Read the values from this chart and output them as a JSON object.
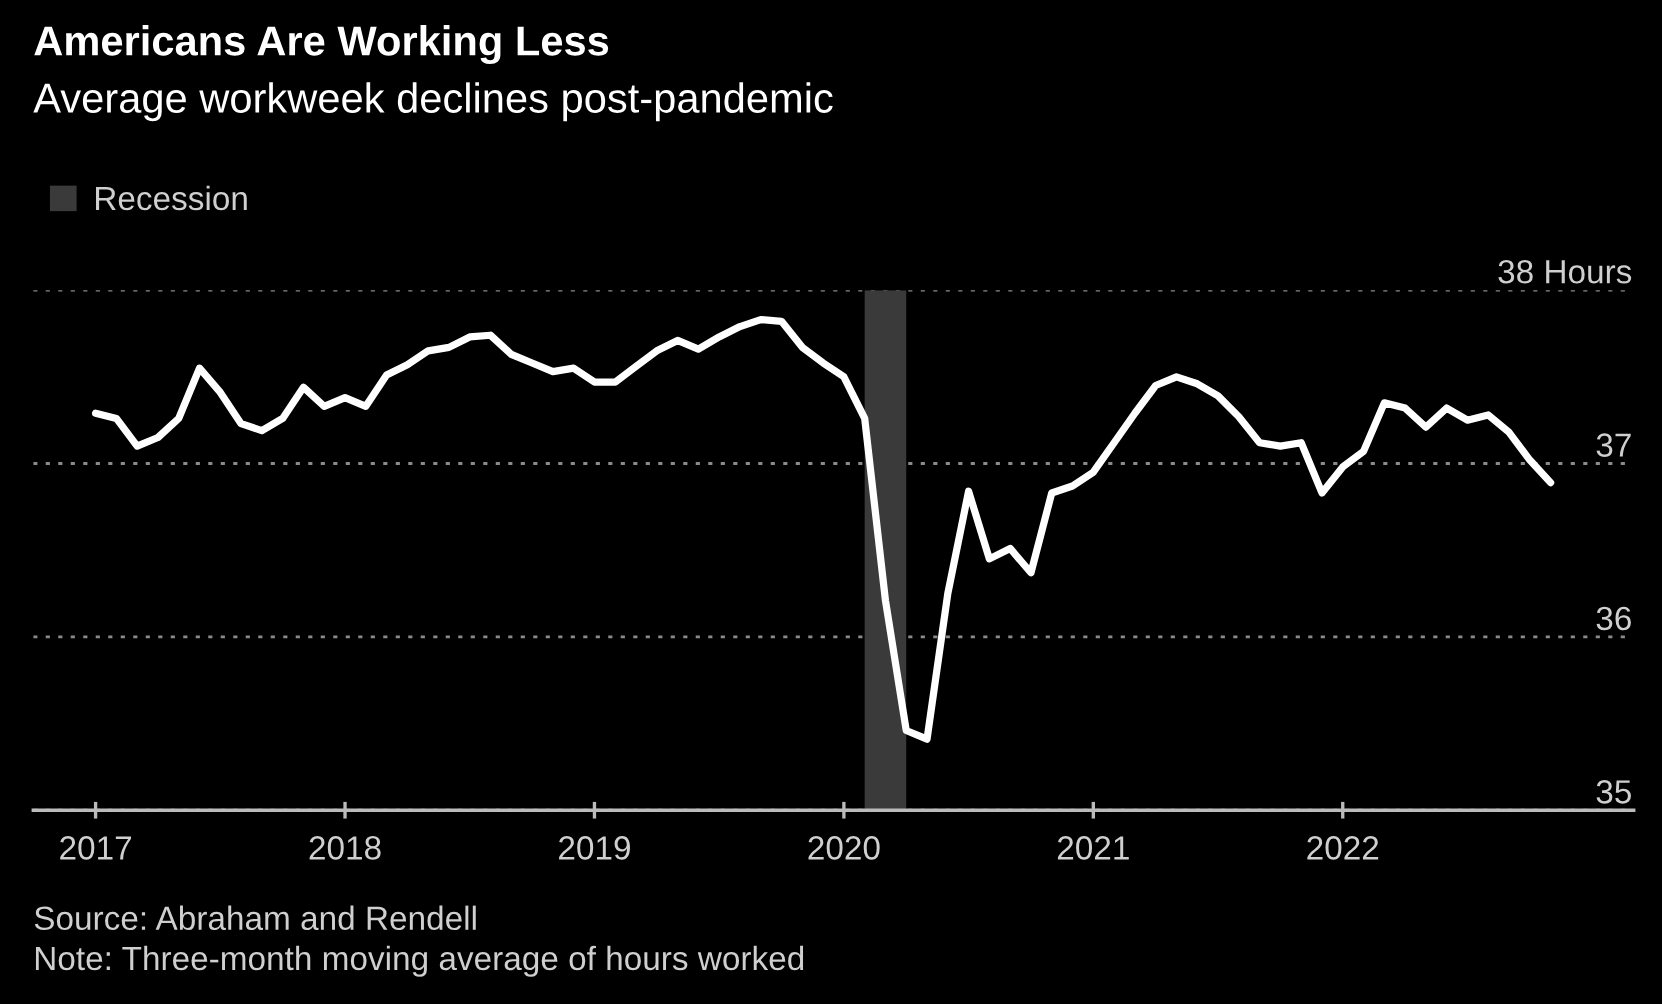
{
  "chart_data": {
    "type": "line",
    "title": "Americans Are Working Less",
    "subtitle": "Average workweek declines post-pandemic",
    "x": [
      "2017-01",
      "2017-02",
      "2017-03",
      "2017-04",
      "2017-05",
      "2017-06",
      "2017-07",
      "2017-08",
      "2017-09",
      "2017-10",
      "2017-11",
      "2017-12",
      "2018-01",
      "2018-02",
      "2018-03",
      "2018-04",
      "2018-05",
      "2018-06",
      "2018-07",
      "2018-08",
      "2018-09",
      "2018-10",
      "2018-11",
      "2018-12",
      "2019-01",
      "2019-02",
      "2019-03",
      "2019-04",
      "2019-05",
      "2019-06",
      "2019-07",
      "2019-08",
      "2019-09",
      "2019-10",
      "2019-11",
      "2019-12",
      "2020-01",
      "2020-02",
      "2020-03",
      "2020-04",
      "2020-05",
      "2020-06",
      "2020-07",
      "2020-08",
      "2020-09",
      "2020-10",
      "2020-11",
      "2020-12",
      "2021-01",
      "2021-02",
      "2021-03",
      "2021-04",
      "2021-05",
      "2021-06",
      "2021-07",
      "2021-08",
      "2021-09",
      "2021-10",
      "2021-11",
      "2021-12",
      "2022-01",
      "2022-02",
      "2022-03",
      "2022-04",
      "2022-05",
      "2022-06",
      "2022-07",
      "2022-08",
      "2022-09",
      "2022-10",
      "2022-11"
    ],
    "series": [
      {
        "color": "#ffffff",
        "values": [
          37.29,
          37.26,
          37.1,
          37.15,
          37.26,
          37.55,
          37.41,
          37.23,
          37.19,
          37.26,
          37.44,
          37.33,
          37.38,
          37.33,
          37.51,
          37.57,
          37.65,
          37.67,
          37.73,
          37.74,
          37.63,
          37.58,
          37.53,
          37.55,
          37.47,
          37.47,
          37.56,
          37.65,
          37.71,
          37.66,
          37.73,
          37.79,
          37.83,
          37.82,
          37.67,
          37.58,
          37.5,
          37.26,
          36.21,
          35.46,
          35.41,
          36.25,
          36.84,
          36.45,
          36.51,
          36.37,
          36.83,
          36.87,
          36.95,
          37.12,
          37.29,
          37.45,
          37.5,
          37.46,
          37.39,
          37.27,
          37.12,
          37.1,
          37.12,
          36.83,
          36.98,
          37.07,
          37.35,
          37.32,
          37.21,
          37.32,
          37.25,
          37.28,
          37.18,
          37.02,
          36.89
        ]
      }
    ],
    "xlim": [
      "2016-10",
      "2023-03"
    ],
    "xticks": [
      "2017",
      "2018",
      "2019",
      "2020",
      "2021",
      "2022"
    ],
    "ylim": [
      35,
      38
    ],
    "yticks": [
      35,
      36,
      37,
      {
        "value": 38,
        "label": "38 Hours"
      }
    ],
    "grid": "y",
    "legend": "top left",
    "line_style": "solid",
    "marker": "none",
    "bands": [
      {
        "axis": "x",
        "from": "2020-02",
        "to": "2020-04",
        "label": "Recession",
        "color": "#3a3a3a"
      }
    ],
    "annotations": [
      "Source: Abraham and Rendell",
      "Note: Three-month moving average of hours worked"
    ]
  }
}
